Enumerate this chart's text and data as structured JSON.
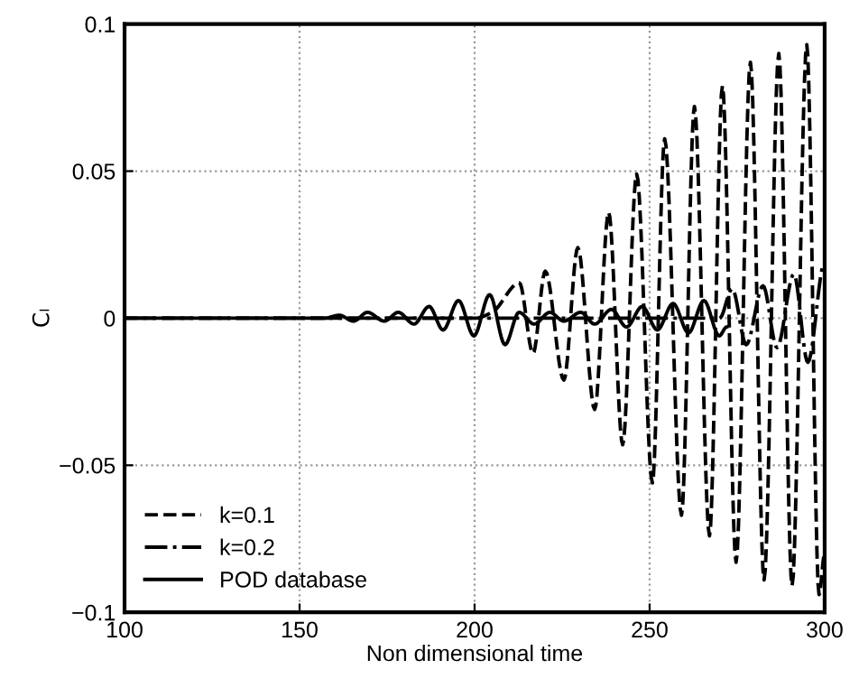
{
  "chart_data": {
    "type": "line",
    "xlabel": "Non dimensional time",
    "ylabel": "Cₗ",
    "xlim": [
      100,
      300
    ],
    "xticks": [
      100,
      150,
      200,
      250,
      300
    ],
    "ylim": [
      -0.1,
      0.1
    ],
    "yticks": [
      {
        "value": -0.1,
        "label": "−0.1"
      },
      {
        "value": -0.05,
        "label": "−0.05"
      },
      0,
      0.05,
      0.1
    ],
    "grid": true,
    "legend": "bottom left",
    "series": [
      {
        "name": "k=0.1",
        "color": "#000000",
        "line_style": "dashed",
        "x": [
          100,
          150,
          200,
          205,
          212.8,
          216.7,
          220.2,
          225.5,
          229.5,
          234.3,
          238.3,
          242.3,
          246.3,
          250.8,
          254.3,
          259.1,
          262.8,
          267.1,
          270.8,
          274.7,
          278.8,
          282.7,
          286.9,
          290.7,
          294.9,
          298.4,
          300
        ],
        "values": [
          0,
          0,
          0,
          0.002,
          0.012,
          -0.012,
          0.016,
          -0.021,
          0.024,
          -0.031,
          0.036,
          -0.043,
          0.049,
          -0.056,
          0.061,
          -0.067,
          0.072,
          -0.074,
          0.079,
          -0.083,
          0.087,
          -0.089,
          0.09,
          -0.091,
          0.093,
          -0.094,
          -0.08
        ]
      },
      {
        "name": "k=0.2",
        "color": "#000000",
        "line_style": "dashdot",
        "x": [
          100,
          200,
          270,
          273.6,
          277.6,
          282.4,
          286.4,
          291.2,
          295.2,
          300
        ],
        "values": [
          0,
          0,
          0,
          0.01,
          -0.009,
          0.011,
          -0.01,
          0.015,
          -0.015,
          0.019
        ]
      },
      {
        "name": "POD database",
        "color": "#000000",
        "line_style": "solid",
        "x": [
          100,
          150,
          157,
          161.4,
          165.4,
          169.4,
          174.2,
          178.2,
          182.7,
          187.0,
          191.0,
          195.4,
          199.8,
          204.3,
          208.7,
          212.7,
          217.0,
          221.5,
          225.5,
          230.3,
          234.3,
          239.1,
          243.4,
          247.9,
          252.2,
          256.7,
          261.1,
          265.5,
          269.9,
          272.0
        ],
        "values": [
          0,
          0,
          0,
          0.001,
          -0.001,
          0.002,
          -0.001,
          0.002,
          -0.002,
          0.004,
          -0.004,
          0.006,
          -0.006,
          0.008,
          -0.009,
          0.002,
          -0.002,
          0.002,
          -0.001,
          0.002,
          -0.002,
          0.003,
          -0.003,
          0.004,
          -0.004,
          0.005,
          -0.005,
          0.006,
          -0.006,
          -0.003
        ]
      }
    ]
  }
}
